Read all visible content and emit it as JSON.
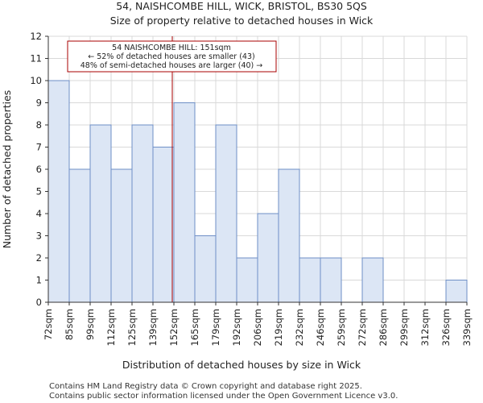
{
  "chart_data": {
    "type": "bar",
    "title_line1": "54, NAISHCOMBE HILL, WICK, BRISTOL, BS30 5QS",
    "title_line2": "Size of property relative to detached houses in Wick",
    "xlabel": "Distribution of detached houses by size in Wick",
    "ylabel": "Number of detached properties",
    "bin_edges": [
      72,
      85,
      99,
      112,
      125,
      139,
      152,
      165,
      179,
      192,
      206,
      219,
      232,
      246,
      259,
      272,
      286,
      299,
      312,
      326,
      339
    ],
    "tick_labels": [
      "72sqm",
      "85sqm",
      "99sqm",
      "112sqm",
      "125sqm",
      "139sqm",
      "152sqm",
      "165sqm",
      "179sqm",
      "192sqm",
      "206sqm",
      "219sqm",
      "232sqm",
      "246sqm",
      "259sqm",
      "272sqm",
      "286sqm",
      "299sqm",
      "312sqm",
      "326sqm",
      "339sqm"
    ],
    "values": [
      10,
      6,
      8,
      6,
      8,
      7,
      9,
      3,
      8,
      2,
      4,
      6,
      2,
      2,
      0,
      2,
      0,
      0,
      0,
      1
    ],
    "ylim": [
      0,
      12
    ],
    "yticks": [
      0,
      1,
      2,
      3,
      4,
      5,
      6,
      7,
      8,
      9,
      10,
      11,
      12
    ],
    "property_size": 151,
    "annotation": [
      "54 NAISHCOMBE HILL: 151sqm",
      "← 52% of detached houses are smaller (43)",
      "48% of semi-detached houses are larger (40) →"
    ],
    "colors": {
      "left_bar_fill": "#dce6f5",
      "right_bar_fill": "#dce6f5",
      "bar_edge": "#6e8fc6",
      "marker_line": "#aa0000",
      "grid": "#d9d9d9"
    }
  },
  "footer": {
    "line1": "Contains HM Land Registry data © Crown copyright and database right 2025.",
    "line2": "Contains public sector information licensed under the Open Government Licence v3.0."
  }
}
